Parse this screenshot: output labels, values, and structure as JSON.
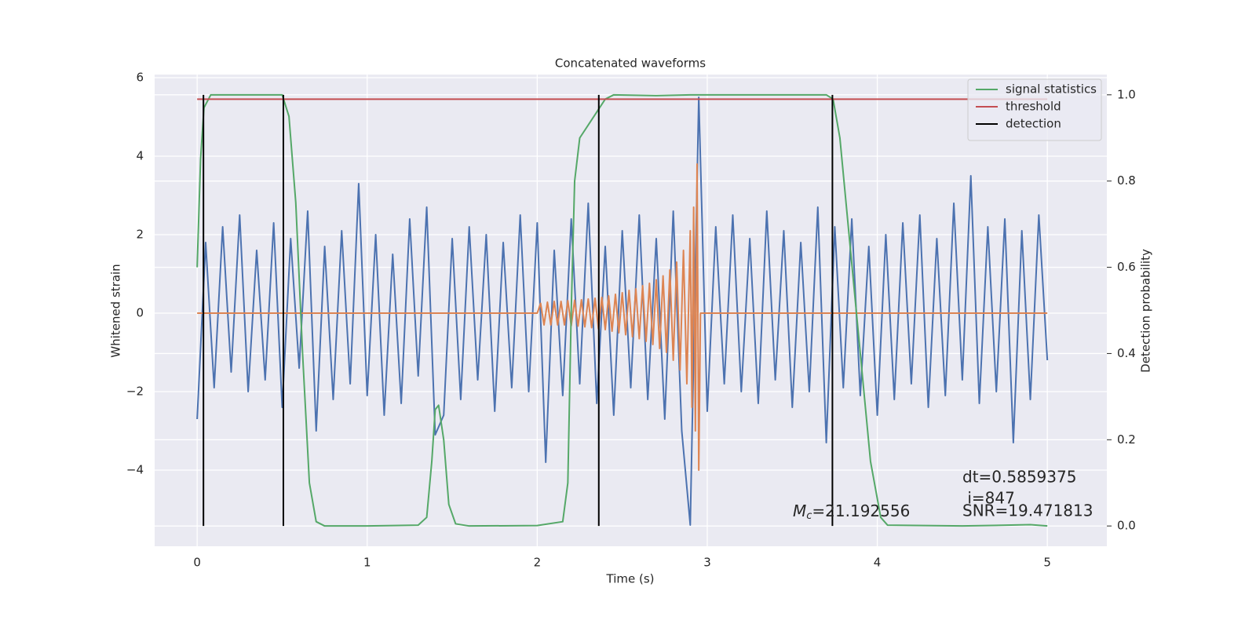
{
  "chart_data": {
    "type": "line",
    "title": "Concatenated waveforms",
    "x_label": "Time (s)",
    "y_label": "Whitened strain",
    "y2_label": "Detection probability",
    "xlim": [
      -0.25,
      5.35
    ],
    "ylim": [
      -5.94,
      6.08
    ],
    "y2lim": [
      -0.047,
      1.047
    ],
    "xticks": [
      0,
      1,
      2,
      3,
      4,
      5
    ],
    "yticks": [
      {
        "value": -4,
        "label": "−4"
      },
      {
        "value": -2,
        "label": "−2"
      },
      0,
      2,
      4,
      6
    ],
    "y2ticks": [
      {
        "value": 0,
        "label": "0.0"
      },
      0.2,
      0.4,
      0.6,
      0.8,
      {
        "value": 1,
        "label": "1.0"
      }
    ],
    "grid": true,
    "legend": "upper right",
    "series": [
      {
        "color": "#4c72b0",
        "x": [
          0,
          0.05,
          0.1,
          0.15,
          0.2,
          0.25,
          0.3,
          0.35,
          0.4,
          0.45,
          0.5,
          0.55,
          0.6,
          0.65,
          0.7,
          0.75,
          0.8,
          0.85,
          0.9,
          0.95,
          1,
          1.05,
          1.1,
          1.15,
          1.2,
          1.25,
          1.3,
          1.35,
          1.4,
          1.45,
          1.5,
          1.55,
          1.6,
          1.65,
          1.7,
          1.75,
          1.8,
          1.85,
          1.9,
          1.95,
          2,
          2.05,
          2.1,
          2.15,
          2.2,
          2.25,
          2.3,
          2.35,
          2.4,
          2.45,
          2.5,
          2.55,
          2.6,
          2.65,
          2.7,
          2.75,
          2.8,
          2.85,
          2.9,
          2.95,
          3,
          3.05,
          3.1,
          3.15,
          3.2,
          3.25,
          3.3,
          3.35,
          3.4,
          3.45,
          3.5,
          3.55,
          3.6,
          3.65,
          3.7,
          3.75,
          3.8,
          3.85,
          3.9,
          3.95,
          4,
          4.05,
          4.1,
          4.15,
          4.2,
          4.25,
          4.3,
          4.35,
          4.4,
          4.45,
          4.5,
          4.55,
          4.6,
          4.65,
          4.7,
          4.75,
          4.8,
          4.85,
          4.9,
          4.95,
          5
        ],
        "values": [
          -2.7,
          1.8,
          -1.9,
          2.2,
          -1.5,
          2.5,
          -2.0,
          1.6,
          -1.7,
          2.3,
          -2.4,
          1.9,
          -1.4,
          2.6,
          -3.0,
          1.7,
          -2.2,
          2.1,
          -1.8,
          3.3,
          -2.1,
          2.0,
          -2.6,
          1.5,
          -2.3,
          2.4,
          -1.6,
          2.7,
          -3.1,
          -2.6,
          1.9,
          -2.2,
          2.2,
          -1.7,
          2.0,
          -2.5,
          1.8,
          -1.9,
          2.5,
          -2.0,
          2.3,
          -3.8,
          1.6,
          -2.1,
          2.4,
          -1.8,
          2.8,
          -2.3,
          1.7,
          -2.6,
          2.1,
          -1.9,
          2.5,
          -2.2,
          1.9,
          -2.7,
          2.6,
          -3.0,
          -5.4,
          5.5,
          -2.5,
          2.2,
          -1.8,
          2.5,
          -2.0,
          1.9,
          -2.3,
          2.6,
          -1.7,
          2.1,
          -2.4,
          1.8,
          -2.0,
          2.7,
          -3.3,
          2.2,
          -1.9,
          2.4,
          -2.1,
          1.7,
          -2.6,
          2.0,
          -2.2,
          2.3,
          -1.8,
          2.5,
          -2.4,
          1.9,
          -2.1,
          2.8,
          -1.7,
          3.5,
          -2.3,
          2.2,
          -2.0,
          2.4,
          -3.3,
          2.1,
          -2.2,
          2.5,
          -1.2
        ]
      },
      {
        "color": "#dd8452",
        "x": [
          0,
          2,
          2.02,
          2.04,
          2.06,
          2.08,
          2.1,
          2.12,
          2.14,
          2.16,
          2.18,
          2.2,
          2.22,
          2.24,
          2.26,
          2.28,
          2.3,
          2.32,
          2.34,
          2.36,
          2.38,
          2.4,
          2.42,
          2.44,
          2.46,
          2.48,
          2.5,
          2.52,
          2.54,
          2.56,
          2.58,
          2.6,
          2.62,
          2.64,
          2.66,
          2.68,
          2.7,
          2.72,
          2.74,
          2.76,
          2.78,
          2.8,
          2.82,
          2.84,
          2.86,
          2.88,
          2.9,
          2.91,
          2.92,
          2.93,
          2.94,
          2.95,
          2.96,
          5
        ],
        "values": [
          0,
          0,
          0.25,
          -0.3,
          0.28,
          -0.3,
          0.3,
          -0.3,
          0.3,
          -0.3,
          0.32,
          -0.32,
          0.33,
          -0.33,
          0.34,
          -0.35,
          0.36,
          -0.37,
          0.38,
          -0.4,
          0.4,
          -0.42,
          0.44,
          -0.46,
          0.48,
          -0.5,
          0.52,
          -0.55,
          0.58,
          -0.6,
          0.62,
          -0.65,
          0.7,
          -0.72,
          0.76,
          -0.8,
          0.85,
          -0.9,
          0.95,
          -1.0,
          1.1,
          -1.2,
          1.3,
          -1.45,
          1.6,
          -1.8,
          2.1,
          -2.4,
          2.7,
          -3.0,
          3.8,
          -4.0,
          0,
          0
        ]
      },
      {
        "name": "signal statistics",
        "color": "#55a868",
        "axis": "y2",
        "x": [
          0,
          0.02,
          0.04,
          0.08,
          0.5,
          0.54,
          0.58,
          0.62,
          0.66,
          0.7,
          0.75,
          1,
          1.3,
          1.35,
          1.38,
          1.4,
          1.42,
          1.45,
          1.48,
          1.52,
          1.6,
          2,
          2.15,
          2.18,
          2.2,
          2.22,
          2.25,
          2.3,
          2.35,
          2.4,
          2.45,
          2.7,
          2.9,
          3.7,
          3.74,
          3.78,
          3.84,
          3.9,
          3.96,
          4.02,
          4.06,
          4.5,
          4.9,
          5
        ],
        "values": [
          0.6,
          0.85,
          0.97,
          1.0,
          1.0,
          0.95,
          0.75,
          0.4,
          0.1,
          0.01,
          0.0,
          0.0,
          0.002,
          0.02,
          0.15,
          0.27,
          0.28,
          0.2,
          0.05,
          0.005,
          0.0,
          0.001,
          0.01,
          0.1,
          0.5,
          0.8,
          0.9,
          0.93,
          0.96,
          0.99,
          1.0,
          0.998,
          1.0,
          1.0,
          0.99,
          0.9,
          0.65,
          0.4,
          0.15,
          0.02,
          0.002,
          0.0,
          0.003,
          0.0
        ]
      },
      {
        "name": "threshold",
        "color": "#c44e52",
        "axis": "y2",
        "x": [
          0,
          5
        ],
        "values": [
          0.99,
          0.99
        ]
      }
    ],
    "detections": {
      "name": "detection",
      "color": "#000000",
      "axis": "y2",
      "x": [
        0.037,
        0.507,
        2.362,
        3.736
      ],
      "range": [
        0,
        1
      ]
    },
    "annotations": {
      "dt": "dt=0.5859375",
      "i": " i=847",
      "snr": "SNR=19.471813",
      "mc": {
        "symbol": "M",
        "subscript": "c",
        "text": "=21.192556"
      }
    }
  }
}
